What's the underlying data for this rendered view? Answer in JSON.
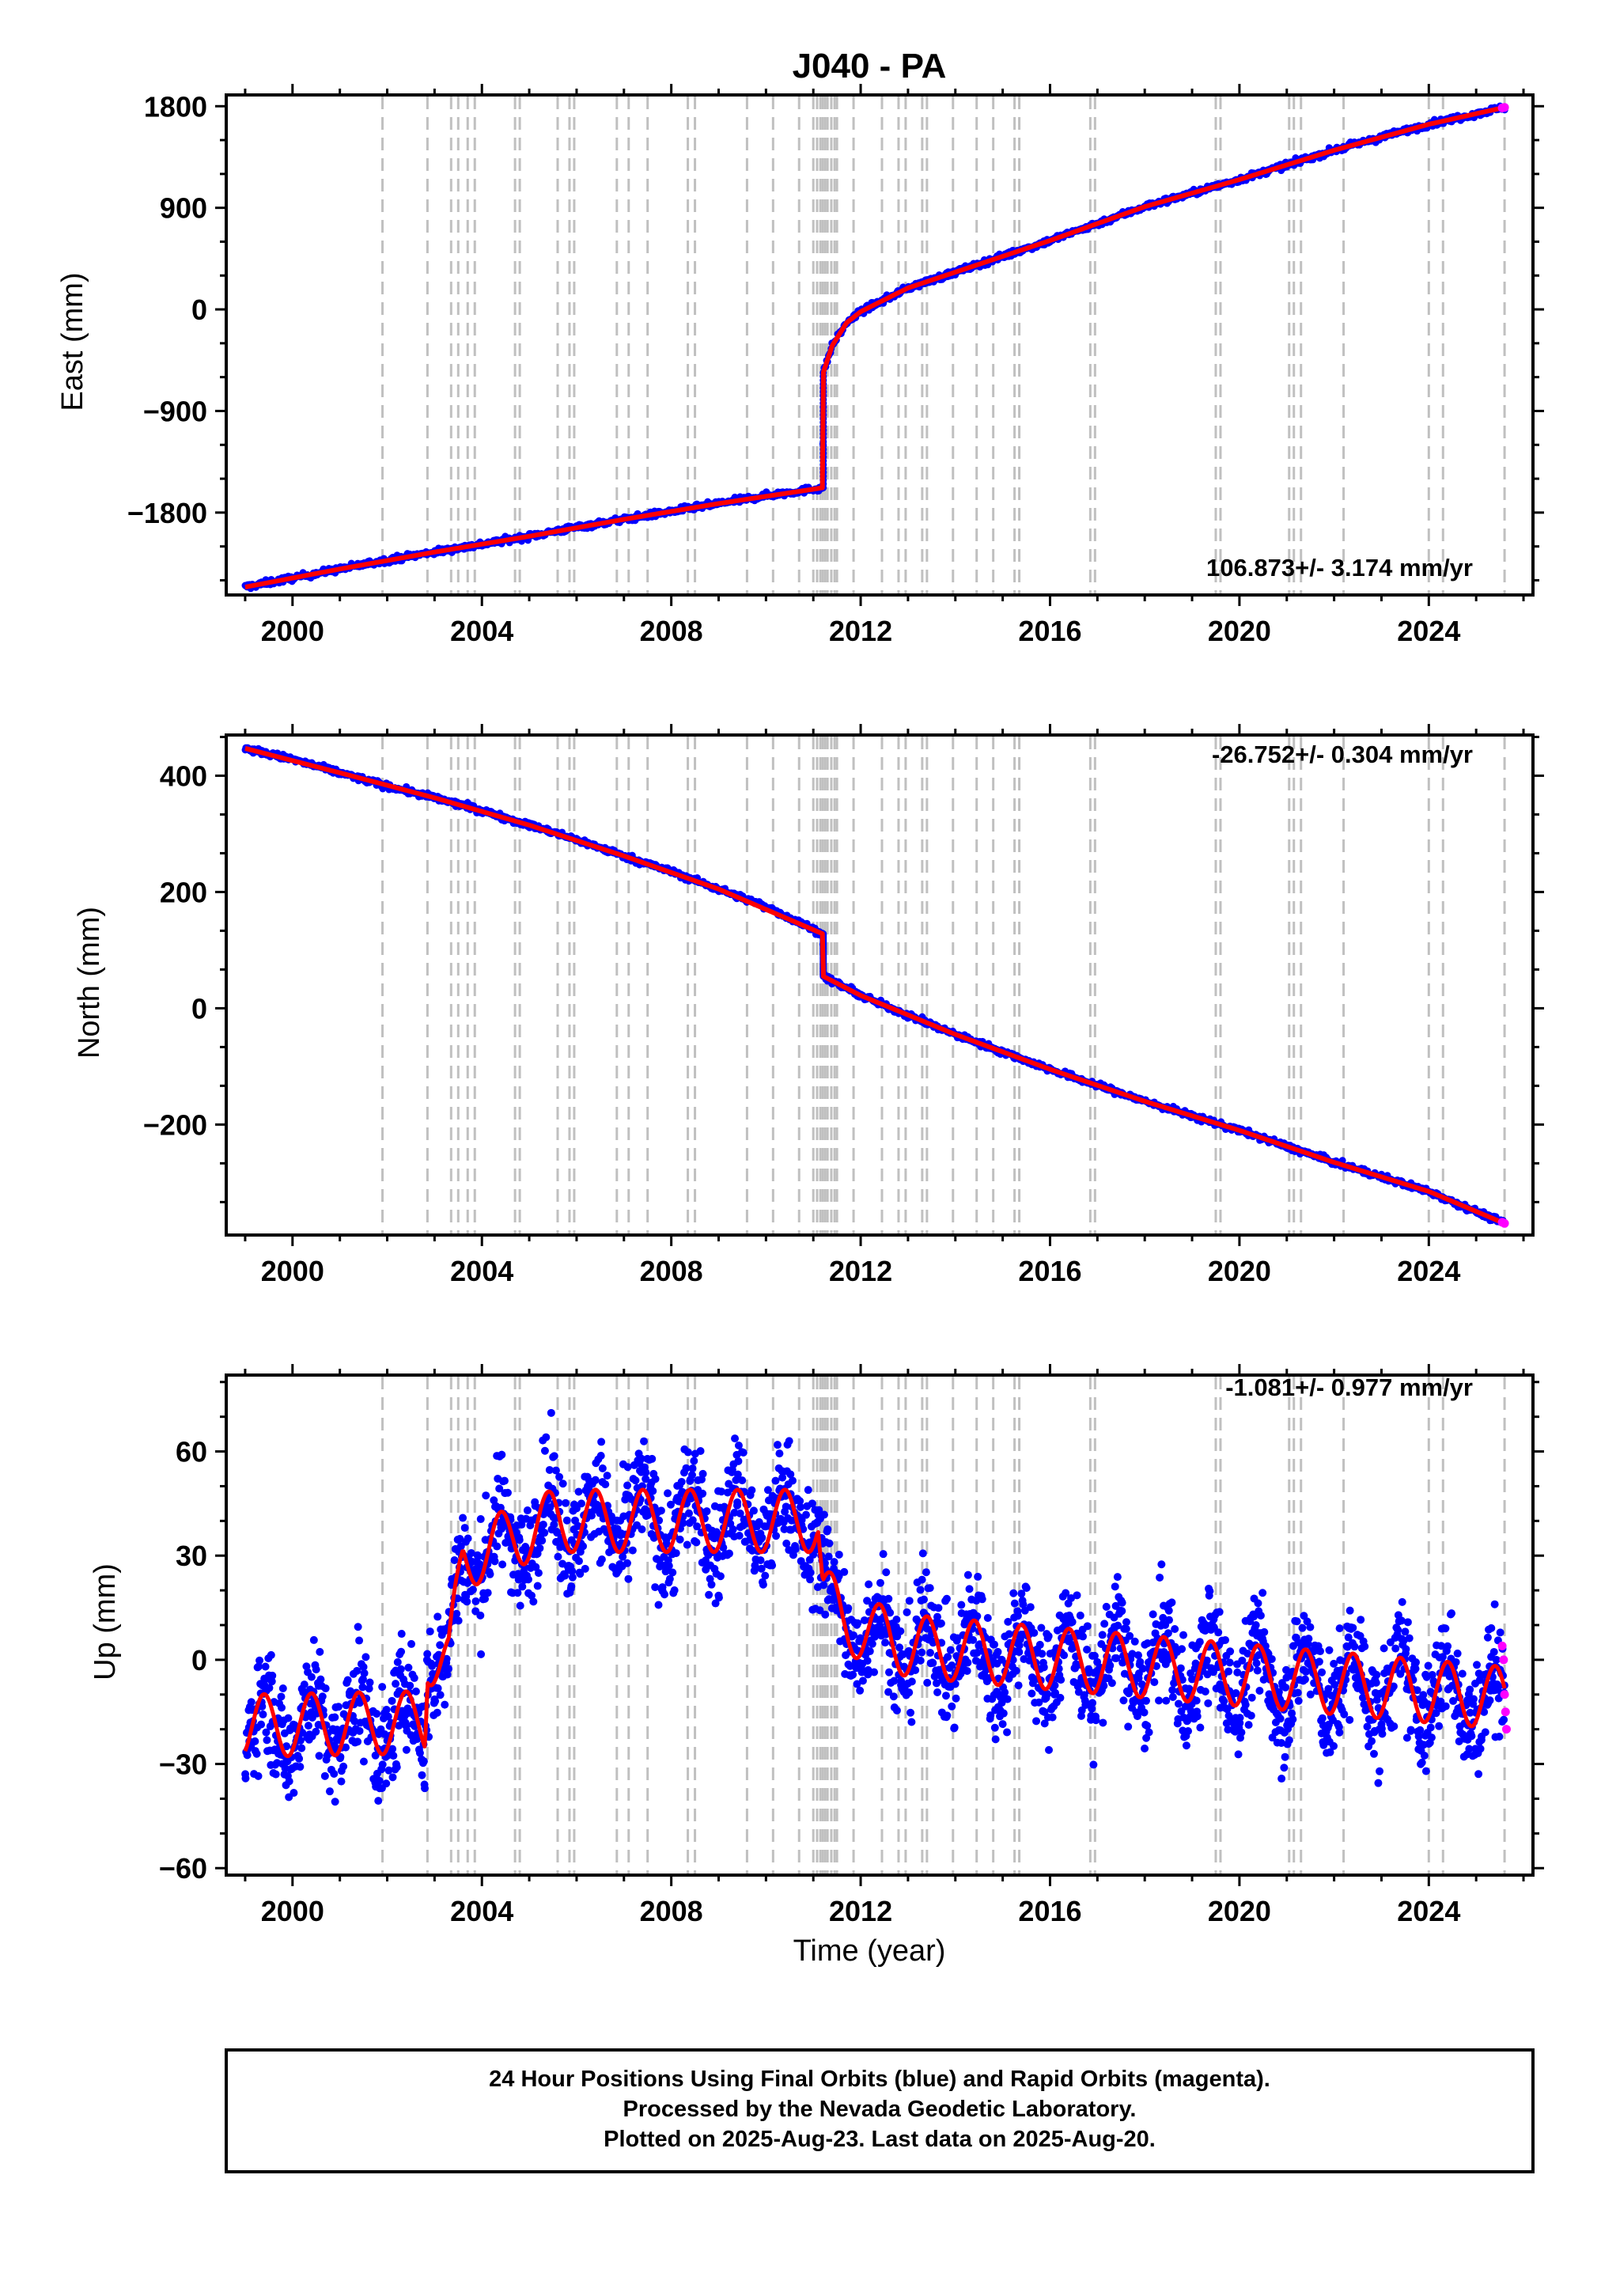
{
  "figure": {
    "title": "J040 - PA",
    "xlabel": "Time (year)",
    "footer": [
      "24 Hour Positions Using Final Orbits (blue) and Rapid Orbits (magenta).",
      "Processed by the Nevada Geodetic Laboratory.",
      "Plotted on 2025-Aug-23. Last data on 2025-Aug-20."
    ]
  },
  "colors": {
    "final_orbits": "#0000ff",
    "rapid_orbits": "#ff00ff",
    "model": "#ff0000",
    "event_lines": "#c0c0c0",
    "frame": "#000000"
  },
  "chart_data": [
    {
      "type": "scatter",
      "ylabel": "East (mm)",
      "rate_label": "106.873+/- 3.174 mm/yr",
      "rate_position": "bottom-right",
      "xlim": [
        1998.6,
        2026.2
      ],
      "ylim": [
        -2530,
        1900
      ],
      "xticks": [
        2000,
        2004,
        2008,
        2012,
        2016,
        2020,
        2024
      ],
      "yticks": [
        -1800,
        -900,
        0,
        900,
        1800
      ],
      "ytick_labels": [
        "−1800",
        "−900",
        "0",
        "900",
        "1800"
      ],
      "grid": false,
      "series": [
        {
          "name": "Final Orbits (blue)",
          "marker": "dot",
          "x": [
            1999.0,
            2000.0,
            2001.0,
            2002.0,
            2003.0,
            2004.0,
            2005.0,
            2006.0,
            2007.0,
            2008.0,
            2009.0,
            2010.0,
            2011.2,
            2011.21,
            2011.4,
            2011.7,
            2012.0,
            2013.0,
            2014.0,
            2016.0,
            2018.0,
            2020.0,
            2022.0,
            2024.0,
            2025.6
          ],
          "y": [
            -2460,
            -2380,
            -2300,
            -2220,
            -2150,
            -2080,
            -2010,
            -1930,
            -1860,
            -1790,
            -1720,
            -1650,
            -1580,
            -560,
            -320,
            -120,
            -20,
            190,
            330,
            610,
            910,
            1150,
            1410,
            1640,
            1790
          ]
        },
        {
          "name": "Rapid Orbits (magenta)",
          "marker": "dot",
          "x": [
            2025.55,
            2025.6
          ],
          "y": [
            1785,
            1790
          ]
        }
      ],
      "model": {
        "x": [
          1999.0,
          2001.0,
          2003.0,
          2005.0,
          2007.0,
          2009.0,
          2011.2,
          2011.21,
          2011.4,
          2011.7,
          2012.0,
          2013.0,
          2014.0,
          2016.0,
          2018.0,
          2020.0,
          2022.0,
          2024.0,
          2025.6
        ],
        "y": [
          -2460,
          -2300,
          -2150,
          -2010,
          -1860,
          -1720,
          -1580,
          -560,
          -320,
          -120,
          -20,
          190,
          330,
          610,
          910,
          1150,
          1410,
          1640,
          1790
        ]
      }
    },
    {
      "type": "scatter",
      "ylabel": "North (mm)",
      "rate_label": "-26.752+/- 0.304 mm/yr",
      "rate_position": "top-right",
      "xlim": [
        1998.6,
        2026.2
      ],
      "ylim": [
        -390,
        470
      ],
      "xticks": [
        2000,
        2004,
        2008,
        2012,
        2016,
        2020,
        2024
      ],
      "yticks": [
        -200,
        0,
        200,
        400
      ],
      "ytick_labels": [
        "−200",
        "0",
        "200",
        "400"
      ],
      "grid": false,
      "series": [
        {
          "name": "Final Orbits (blue)",
          "marker": "dot",
          "x": [
            1999.0,
            2000.0,
            2001.0,
            2002.0,
            2003.0,
            2004.0,
            2005.0,
            2006.0,
            2007.0,
            2008.0,
            2009.0,
            2010.0,
            2011.2,
            2011.21,
            2012.0,
            2013.0,
            2014.0,
            2016.0,
            2018.0,
            2020.0,
            2022.0,
            2024.0,
            2025.6
          ],
          "y": [
            447,
            428,
            405,
            382,
            362,
            340,
            315,
            290,
            262,
            235,
            205,
            175,
            128,
            55,
            22,
            -12,
            -45,
            -105,
            -160,
            -210,
            -265,
            -315,
            -370
          ]
        },
        {
          "name": "Rapid Orbits (magenta)",
          "marker": "dot",
          "x": [
            2025.55,
            2025.6
          ],
          "y": [
            -368,
            -370
          ]
        }
      ],
      "model": {
        "x": [
          1999.0,
          2001.0,
          2003.0,
          2005.0,
          2007.0,
          2009.0,
          2011.2,
          2011.21,
          2012.0,
          2014.0,
          2016.0,
          2018.0,
          2020.0,
          2022.0,
          2024.0,
          2025.6
        ],
        "y": [
          447,
          405,
          362,
          315,
          262,
          205,
          128,
          55,
          22,
          -45,
          -105,
          -160,
          -210,
          -265,
          -315,
          -370
        ]
      }
    },
    {
      "type": "scatter",
      "ylabel": "Up (mm)",
      "rate_label": "-1.081+/- 0.977 mm/yr",
      "rate_position": "top-right",
      "xlim": [
        1998.6,
        2026.2
      ],
      "ylim": [
        -62,
        82
      ],
      "xticks": [
        2000,
        2004,
        2008,
        2012,
        2016,
        2020,
        2024
      ],
      "yticks": [
        -60,
        -30,
        0,
        30,
        60
      ],
      "ytick_labels": [
        "−60",
        "−30",
        "0",
        "30",
        "60"
      ],
      "grid": false,
      "seasonal_amplitude_mm": 9,
      "scatter_spread_mm": 8,
      "series": [
        {
          "name": "Final Orbits (blue)",
          "marker": "dot",
          "x": [
            1999.0,
            2002.8,
            2002.85,
            2003.3,
            2003.6,
            2005.5,
            2011.1,
            2011.2,
            2011.6,
            2013.0,
            2025.6
          ],
          "y": [
            -19,
            -18,
            2,
            -1,
            29,
            40,
            40,
            20,
            11,
            4,
            -11
          ]
        },
        {
          "name": "Rapid Orbits (magenta)",
          "marker": "dot",
          "x": [
            2025.55,
            2025.58,
            2025.6,
            2025.62,
            2025.64
          ],
          "y": [
            4,
            0,
            -10,
            -15,
            -20
          ]
        }
      ],
      "model": {
        "x": [
          1999.0,
          2002.8,
          2002.85,
          2003.3,
          2003.6,
          2005.5,
          2011.1,
          2011.2,
          2011.6,
          2013.0,
          2025.6
        ],
        "y": [
          -19,
          -18,
          2,
          -1,
          29,
          40,
          40,
          20,
          11,
          4,
          -11
        ]
      }
    }
  ],
  "event_lines": [
    2001.9,
    2002.85,
    2003.35,
    2003.5,
    2003.7,
    2003.85,
    2004.7,
    2004.8,
    2005.6,
    2005.85,
    2005.95,
    2006.85,
    2007.1,
    2007.5,
    2008.35,
    2008.5,
    2009.6,
    2010.15,
    2010.7,
    2011.0,
    2011.08,
    2011.15,
    2011.2,
    2011.25,
    2011.3,
    2011.38,
    2011.45,
    2011.5,
    2011.85,
    2012.45,
    2012.8,
    2012.95,
    2013.3,
    2013.4,
    2013.95,
    2014.45,
    2014.8,
    2015.25,
    2015.35,
    2016.85,
    2016.95,
    2019.5,
    2019.6,
    2021.05,
    2021.15,
    2021.3,
    2022.2,
    2024.0,
    2024.3,
    2025.6
  ]
}
